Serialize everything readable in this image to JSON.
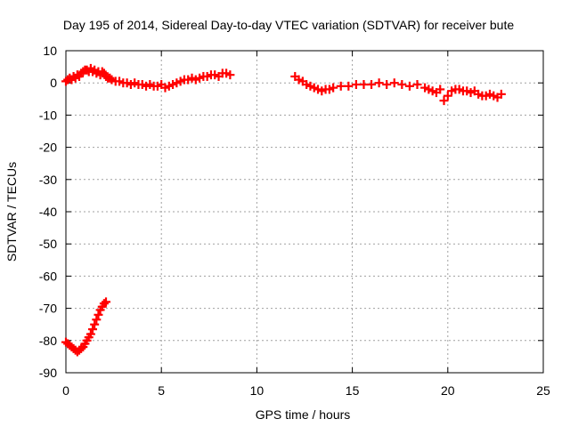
{
  "chart_data": {
    "type": "scatter",
    "title": "Day 195 of 2014, Sidereal Day-to-day VTEC variation (SDTVAR) for receiver bute",
    "xlabel": "GPS time / hours",
    "ylabel": "SDTVAR / TECUs",
    "xlim": [
      0,
      25
    ],
    "ylim": [
      -90,
      10
    ],
    "xticks": [
      "0",
      "5",
      "10",
      "15",
      "20",
      "25"
    ],
    "yticks": [
      "10",
      "0",
      "-10",
      "-20",
      "-30",
      "-40",
      "-50",
      "-60",
      "-70",
      "-80",
      "-90"
    ],
    "grid": true,
    "marker": "plus",
    "series": [
      {
        "name": "bute",
        "color": "#ff0000",
        "x": [
          0.0,
          0.1,
          0.2,
          0.3,
          0.4,
          0.5,
          0.6,
          0.7,
          0.8,
          0.9,
          1.0,
          1.1,
          1.2,
          1.3,
          1.4,
          1.5,
          1.6,
          1.7,
          1.8,
          1.9,
          2.0,
          2.1,
          2.2,
          2.3,
          2.4,
          2.6,
          2.8,
          3.0,
          3.2,
          3.4,
          3.6,
          3.8,
          4.0,
          4.2,
          4.4,
          4.6,
          4.8,
          5.0,
          5.2,
          5.4,
          5.6,
          5.8,
          6.0,
          6.2,
          6.4,
          6.6,
          6.8,
          7.0,
          7.2,
          7.4,
          7.6,
          7.8,
          8.0,
          8.2,
          8.4,
          8.6,
          12.0,
          12.2,
          12.4,
          12.6,
          12.8,
          13.0,
          13.2,
          13.4,
          13.6,
          13.8,
          14.0,
          14.4,
          14.8,
          15.2,
          15.6,
          16.0,
          16.4,
          16.8,
          17.2,
          17.6,
          18.0,
          18.4,
          18.8,
          19.0,
          19.2,
          19.4,
          19.6,
          19.8,
          20.0,
          20.2,
          20.4,
          20.6,
          20.8,
          21.0,
          21.2,
          21.4,
          21.6,
          21.8,
          22.0,
          22.2,
          22.4,
          22.6,
          22.8,
          0.0,
          0.1,
          0.2,
          0.3,
          0.4,
          0.5,
          0.6,
          0.7,
          0.8,
          0.9,
          1.0,
          1.1,
          1.2,
          1.3,
          1.4,
          1.5,
          1.6,
          1.7,
          1.8,
          1.9,
          2.0,
          2.1
        ],
        "y": [
          0.5,
          1.0,
          1.5,
          1.0,
          2.0,
          1.5,
          2.5,
          2.0,
          3.0,
          3.5,
          4.0,
          4.0,
          3.5,
          4.5,
          3.5,
          4.0,
          3.0,
          3.5,
          2.5,
          3.5,
          3.0,
          2.0,
          1.5,
          1.5,
          1.0,
          0.5,
          0.5,
          0.0,
          0.0,
          -0.5,
          0.0,
          -0.5,
          -0.5,
          -1.0,
          -0.5,
          -1.0,
          -1.0,
          -0.5,
          -1.5,
          -1.0,
          -0.5,
          0.0,
          0.5,
          1.0,
          1.0,
          1.5,
          1.0,
          1.5,
          2.0,
          2.0,
          2.5,
          2.5,
          2.0,
          3.0,
          3.0,
          2.5,
          2.0,
          1.0,
          0.5,
          -0.5,
          -1.0,
          -1.5,
          -2.0,
          -2.5,
          -2.0,
          -2.0,
          -1.5,
          -1.0,
          -1.0,
          -0.5,
          -0.5,
          -0.5,
          0.0,
          -0.5,
          0.0,
          -0.5,
          -1.0,
          -0.5,
          -1.5,
          -2.0,
          -2.5,
          -3.0,
          -2.0,
          -5.5,
          -4.0,
          -2.5,
          -2.0,
          -2.0,
          -2.5,
          -2.5,
          -3.0,
          -2.5,
          -3.5,
          -4.0,
          -4.0,
          -3.5,
          -4.0,
          -4.5,
          -3.5,
          -80.5,
          -81.0,
          -81.5,
          -82.0,
          -82.5,
          -83.0,
          -83.5,
          -83.0,
          -82.5,
          -82.0,
          -81.0,
          -80.0,
          -79.0,
          -78.0,
          -76.5,
          -75.0,
          -73.5,
          -72.0,
          -70.5,
          -69.5,
          -68.5,
          -68.0
        ]
      }
    ]
  }
}
